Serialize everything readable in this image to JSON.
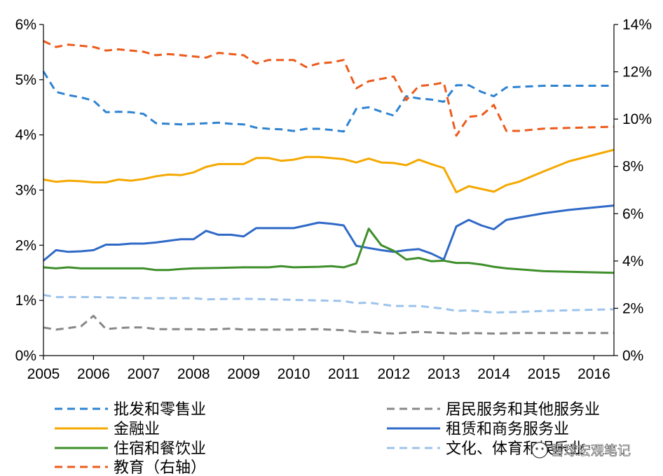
{
  "chart_data": {
    "type": "line",
    "x_ticks": [
      "2005",
      "2006",
      "2007",
      "2008",
      "2009",
      "2010",
      "2011",
      "2012",
      "2013",
      "2014",
      "2015",
      "2016"
    ],
    "xlim": [
      2005,
      2016.4
    ],
    "y_left": {
      "ticks": [
        "0%",
        "1%",
        "2%",
        "3%",
        "4%",
        "5%",
        "6%"
      ],
      "ylim": [
        0,
        6
      ]
    },
    "y_right": {
      "ticks": [
        "0%",
        "2%",
        "4%",
        "6%",
        "8%",
        "10%",
        "12%",
        "14%"
      ],
      "ylim": [
        0,
        14
      ]
    },
    "grid": false,
    "legend_position": "bottom",
    "series": [
      {
        "name": "批发和零售业",
        "color": "#2e83d1",
        "dash": "dashed",
        "axis": "left",
        "points": [
          [
            2005,
            5.15
          ],
          [
            2005.25,
            4.78
          ],
          [
            2005.5,
            4.72
          ],
          [
            2005.75,
            4.68
          ],
          [
            2006,
            4.62
          ],
          [
            2006.25,
            4.41
          ],
          [
            2006.5,
            4.42
          ],
          [
            2006.75,
            4.41
          ],
          [
            2007,
            4.38
          ],
          [
            2007.25,
            4.21
          ],
          [
            2007.5,
            4.2
          ],
          [
            2007.75,
            4.19
          ],
          [
            2008,
            4.2
          ],
          [
            2008.25,
            4.21
          ],
          [
            2008.5,
            4.22
          ],
          [
            2008.75,
            4.2
          ],
          [
            2009,
            4.19
          ],
          [
            2009.25,
            4.13
          ],
          [
            2009.5,
            4.11
          ],
          [
            2009.75,
            4.1
          ],
          [
            2010,
            4.07
          ],
          [
            2010.25,
            4.11
          ],
          [
            2010.5,
            4.11
          ],
          [
            2010.75,
            4.09
          ],
          [
            2011,
            4.06
          ],
          [
            2011.25,
            4.47
          ],
          [
            2011.5,
            4.5
          ],
          [
            2011.75,
            4.42
          ],
          [
            2012,
            4.35
          ],
          [
            2012.25,
            4.7
          ],
          [
            2012.5,
            4.66
          ],
          [
            2012.75,
            4.64
          ],
          [
            2013,
            4.6
          ],
          [
            2013.25,
            4.9
          ],
          [
            2013.5,
            4.9
          ],
          [
            2013.75,
            4.78
          ],
          [
            2014,
            4.7
          ],
          [
            2014.25,
            4.86
          ],
          [
            2014.5,
            4.87
          ],
          [
            2015,
            4.89
          ],
          [
            2016.4,
            4.89
          ]
        ]
      },
      {
        "name": "居民服务和其他服务业",
        "color": "#888888",
        "dash": "dashed",
        "axis": "left",
        "points": [
          [
            2005,
            0.51
          ],
          [
            2005.25,
            0.47
          ],
          [
            2005.5,
            0.5
          ],
          [
            2005.75,
            0.53
          ],
          [
            2006,
            0.72
          ],
          [
            2006.25,
            0.48
          ],
          [
            2006.5,
            0.5
          ],
          [
            2006.75,
            0.51
          ],
          [
            2007,
            0.51
          ],
          [
            2007.25,
            0.48
          ],
          [
            2007.5,
            0.48
          ],
          [
            2007.75,
            0.48
          ],
          [
            2008,
            0.48
          ],
          [
            2008.25,
            0.47
          ],
          [
            2008.5,
            0.48
          ],
          [
            2008.75,
            0.49
          ],
          [
            2009,
            0.47
          ],
          [
            2009.5,
            0.47
          ],
          [
            2010,
            0.47
          ],
          [
            2010.5,
            0.48
          ],
          [
            2011,
            0.46
          ],
          [
            2011.25,
            0.43
          ],
          [
            2011.5,
            0.43
          ],
          [
            2011.75,
            0.41
          ],
          [
            2012,
            0.4
          ],
          [
            2012.5,
            0.43
          ],
          [
            2013,
            0.41
          ],
          [
            2013.25,
            0.4
          ],
          [
            2013.5,
            0.41
          ],
          [
            2014,
            0.4
          ],
          [
            2014.5,
            0.41
          ],
          [
            2016.4,
            0.41
          ]
        ]
      },
      {
        "name": "金融业",
        "color": "#f5a800",
        "dash": "solid",
        "axis": "left",
        "points": [
          [
            2005,
            3.19
          ],
          [
            2005.25,
            3.15
          ],
          [
            2005.5,
            3.17
          ],
          [
            2005.75,
            3.16
          ],
          [
            2006,
            3.14
          ],
          [
            2006.25,
            3.14
          ],
          [
            2006.5,
            3.19
          ],
          [
            2006.75,
            3.17
          ],
          [
            2007,
            3.2
          ],
          [
            2007.25,
            3.25
          ],
          [
            2007.5,
            3.28
          ],
          [
            2007.75,
            3.27
          ],
          [
            2008,
            3.32
          ],
          [
            2008.25,
            3.42
          ],
          [
            2008.5,
            3.47
          ],
          [
            2008.75,
            3.47
          ],
          [
            2009,
            3.47
          ],
          [
            2009.25,
            3.58
          ],
          [
            2009.5,
            3.58
          ],
          [
            2009.75,
            3.53
          ],
          [
            2010,
            3.55
          ],
          [
            2010.25,
            3.6
          ],
          [
            2010.5,
            3.6
          ],
          [
            2010.75,
            3.58
          ],
          [
            2011,
            3.56
          ],
          [
            2011.25,
            3.5
          ],
          [
            2011.5,
            3.57
          ],
          [
            2011.75,
            3.5
          ],
          [
            2012,
            3.49
          ],
          [
            2012.25,
            3.45
          ],
          [
            2012.5,
            3.55
          ],
          [
            2012.75,
            3.47
          ],
          [
            2013,
            3.4
          ],
          [
            2013.25,
            2.96
          ],
          [
            2013.5,
            3.07
          ],
          [
            2013.75,
            3.02
          ],
          [
            2014,
            2.97
          ],
          [
            2014.25,
            3.09
          ],
          [
            2014.5,
            3.15
          ],
          [
            2015,
            3.34
          ],
          [
            2015.5,
            3.52
          ],
          [
            2016.4,
            3.73
          ]
        ]
      },
      {
        "name": "租赁和商务服务业",
        "color": "#2f69c7",
        "dash": "solid",
        "axis": "left",
        "points": [
          [
            2005,
            1.72
          ],
          [
            2005.25,
            1.91
          ],
          [
            2005.5,
            1.88
          ],
          [
            2005.75,
            1.89
          ],
          [
            2006,
            1.91
          ],
          [
            2006.25,
            2.01
          ],
          [
            2006.5,
            2.01
          ],
          [
            2006.75,
            2.03
          ],
          [
            2007,
            2.03
          ],
          [
            2007.25,
            2.05
          ],
          [
            2007.5,
            2.08
          ],
          [
            2007.75,
            2.11
          ],
          [
            2008,
            2.11
          ],
          [
            2008.25,
            2.26
          ],
          [
            2008.5,
            2.19
          ],
          [
            2008.75,
            2.19
          ],
          [
            2009,
            2.16
          ],
          [
            2009.25,
            2.31
          ],
          [
            2009.5,
            2.31
          ],
          [
            2009.75,
            2.31
          ],
          [
            2010,
            2.31
          ],
          [
            2010.25,
            2.36
          ],
          [
            2010.5,
            2.41
          ],
          [
            2010.75,
            2.39
          ],
          [
            2011,
            2.36
          ],
          [
            2011.25,
            1.99
          ],
          [
            2011.5,
            1.95
          ],
          [
            2011.75,
            1.91
          ],
          [
            2012,
            1.88
          ],
          [
            2012.25,
            1.91
          ],
          [
            2012.5,
            1.93
          ],
          [
            2012.75,
            1.85
          ],
          [
            2013,
            1.74
          ],
          [
            2013.25,
            2.34
          ],
          [
            2013.5,
            2.46
          ],
          [
            2013.75,
            2.36
          ],
          [
            2014,
            2.29
          ],
          [
            2014.25,
            2.46
          ],
          [
            2014.5,
            2.5
          ],
          [
            2015,
            2.58
          ],
          [
            2015.5,
            2.64
          ],
          [
            2016.4,
            2.72
          ]
        ]
      },
      {
        "name": "住宿和餐饮业",
        "color": "#3e8e2a",
        "dash": "solid",
        "axis": "left",
        "points": [
          [
            2005,
            1.6
          ],
          [
            2005.25,
            1.58
          ],
          [
            2005.5,
            1.6
          ],
          [
            2005.75,
            1.58
          ],
          [
            2006,
            1.58
          ],
          [
            2006.5,
            1.58
          ],
          [
            2007,
            1.58
          ],
          [
            2007.25,
            1.55
          ],
          [
            2007.5,
            1.55
          ],
          [
            2007.75,
            1.57
          ],
          [
            2008,
            1.58
          ],
          [
            2008.5,
            1.59
          ],
          [
            2009,
            1.6
          ],
          [
            2009.5,
            1.6
          ],
          [
            2009.75,
            1.62
          ],
          [
            2010,
            1.6
          ],
          [
            2010.5,
            1.61
          ],
          [
            2010.75,
            1.62
          ],
          [
            2011,
            1.6
          ],
          [
            2011.25,
            1.67
          ],
          [
            2011.5,
            2.3
          ],
          [
            2011.75,
            2.0
          ],
          [
            2012,
            1.9
          ],
          [
            2012.25,
            1.74
          ],
          [
            2012.5,
            1.77
          ],
          [
            2012.75,
            1.71
          ],
          [
            2013,
            1.72
          ],
          [
            2013.25,
            1.68
          ],
          [
            2013.5,
            1.68
          ],
          [
            2013.75,
            1.65
          ],
          [
            2014,
            1.61
          ],
          [
            2014.25,
            1.58
          ],
          [
            2015,
            1.53
          ],
          [
            2016.4,
            1.5
          ]
        ]
      },
      {
        "name": "文化、体育和娱乐业",
        "color": "#9dc3ec",
        "dash": "dashed",
        "axis": "left",
        "points": [
          [
            2005,
            1.1
          ],
          [
            2005.25,
            1.06
          ],
          [
            2006,
            1.06
          ],
          [
            2006.5,
            1.05
          ],
          [
            2007,
            1.04
          ],
          [
            2008,
            1.04
          ],
          [
            2008.25,
            1.02
          ],
          [
            2009,
            1.03
          ],
          [
            2009.5,
            1.02
          ],
          [
            2010,
            1.01
          ],
          [
            2010.5,
            1.0
          ],
          [
            2011,
            0.99
          ],
          [
            2011.25,
            0.95
          ],
          [
            2011.5,
            0.96
          ],
          [
            2012,
            0.9
          ],
          [
            2012.5,
            0.9
          ],
          [
            2013,
            0.85
          ],
          [
            2013.25,
            0.81
          ],
          [
            2013.5,
            0.82
          ],
          [
            2014,
            0.78
          ],
          [
            2014.5,
            0.79
          ],
          [
            2015,
            0.81
          ],
          [
            2016.4,
            0.84
          ]
        ]
      },
      {
        "name": "教育（右轴）",
        "color": "#ec5b1c",
        "dash": "dashed",
        "axis": "right",
        "points": [
          [
            2005,
            13.3
          ],
          [
            2005.25,
            13.05
          ],
          [
            2005.5,
            13.15
          ],
          [
            2005.75,
            13.1
          ],
          [
            2006,
            13.05
          ],
          [
            2006.25,
            12.9
          ],
          [
            2006.5,
            12.95
          ],
          [
            2006.75,
            12.9
          ],
          [
            2007,
            12.85
          ],
          [
            2007.25,
            12.7
          ],
          [
            2007.5,
            12.75
          ],
          [
            2007.75,
            12.7
          ],
          [
            2008,
            12.65
          ],
          [
            2008.25,
            12.6
          ],
          [
            2008.5,
            12.8
          ],
          [
            2008.75,
            12.75
          ],
          [
            2009,
            12.7
          ],
          [
            2009.25,
            12.35
          ],
          [
            2009.5,
            12.5
          ],
          [
            2009.75,
            12.5
          ],
          [
            2010,
            12.5
          ],
          [
            2010.25,
            12.2
          ],
          [
            2010.5,
            12.35
          ],
          [
            2010.75,
            12.4
          ],
          [
            2011,
            12.5
          ],
          [
            2011.25,
            11.3
          ],
          [
            2011.5,
            11.6
          ],
          [
            2011.75,
            11.7
          ],
          [
            2012,
            11.8
          ],
          [
            2012.25,
            10.8
          ],
          [
            2012.5,
            11.4
          ],
          [
            2012.75,
            11.45
          ],
          [
            2013,
            11.55
          ],
          [
            2013.25,
            9.3
          ],
          [
            2013.5,
            10.1
          ],
          [
            2013.75,
            10.15
          ],
          [
            2014,
            10.6
          ],
          [
            2014.25,
            9.5
          ],
          [
            2014.5,
            9.5
          ],
          [
            2015,
            9.6
          ],
          [
            2016.4,
            9.68
          ]
        ]
      }
    ]
  },
  "legend": {
    "items": [
      {
        "label": "批发和零售业"
      },
      {
        "label": "居民服务和其他服务业"
      },
      {
        "label": "金融业"
      },
      {
        "label": "租赁和商务服务业"
      },
      {
        "label": "住宿和餐饮业"
      },
      {
        "label": "文化、体育和娱乐业"
      },
      {
        "label": "教育（右轴）"
      }
    ]
  },
  "watermark": {
    "text": "雪球宏观笔记"
  }
}
